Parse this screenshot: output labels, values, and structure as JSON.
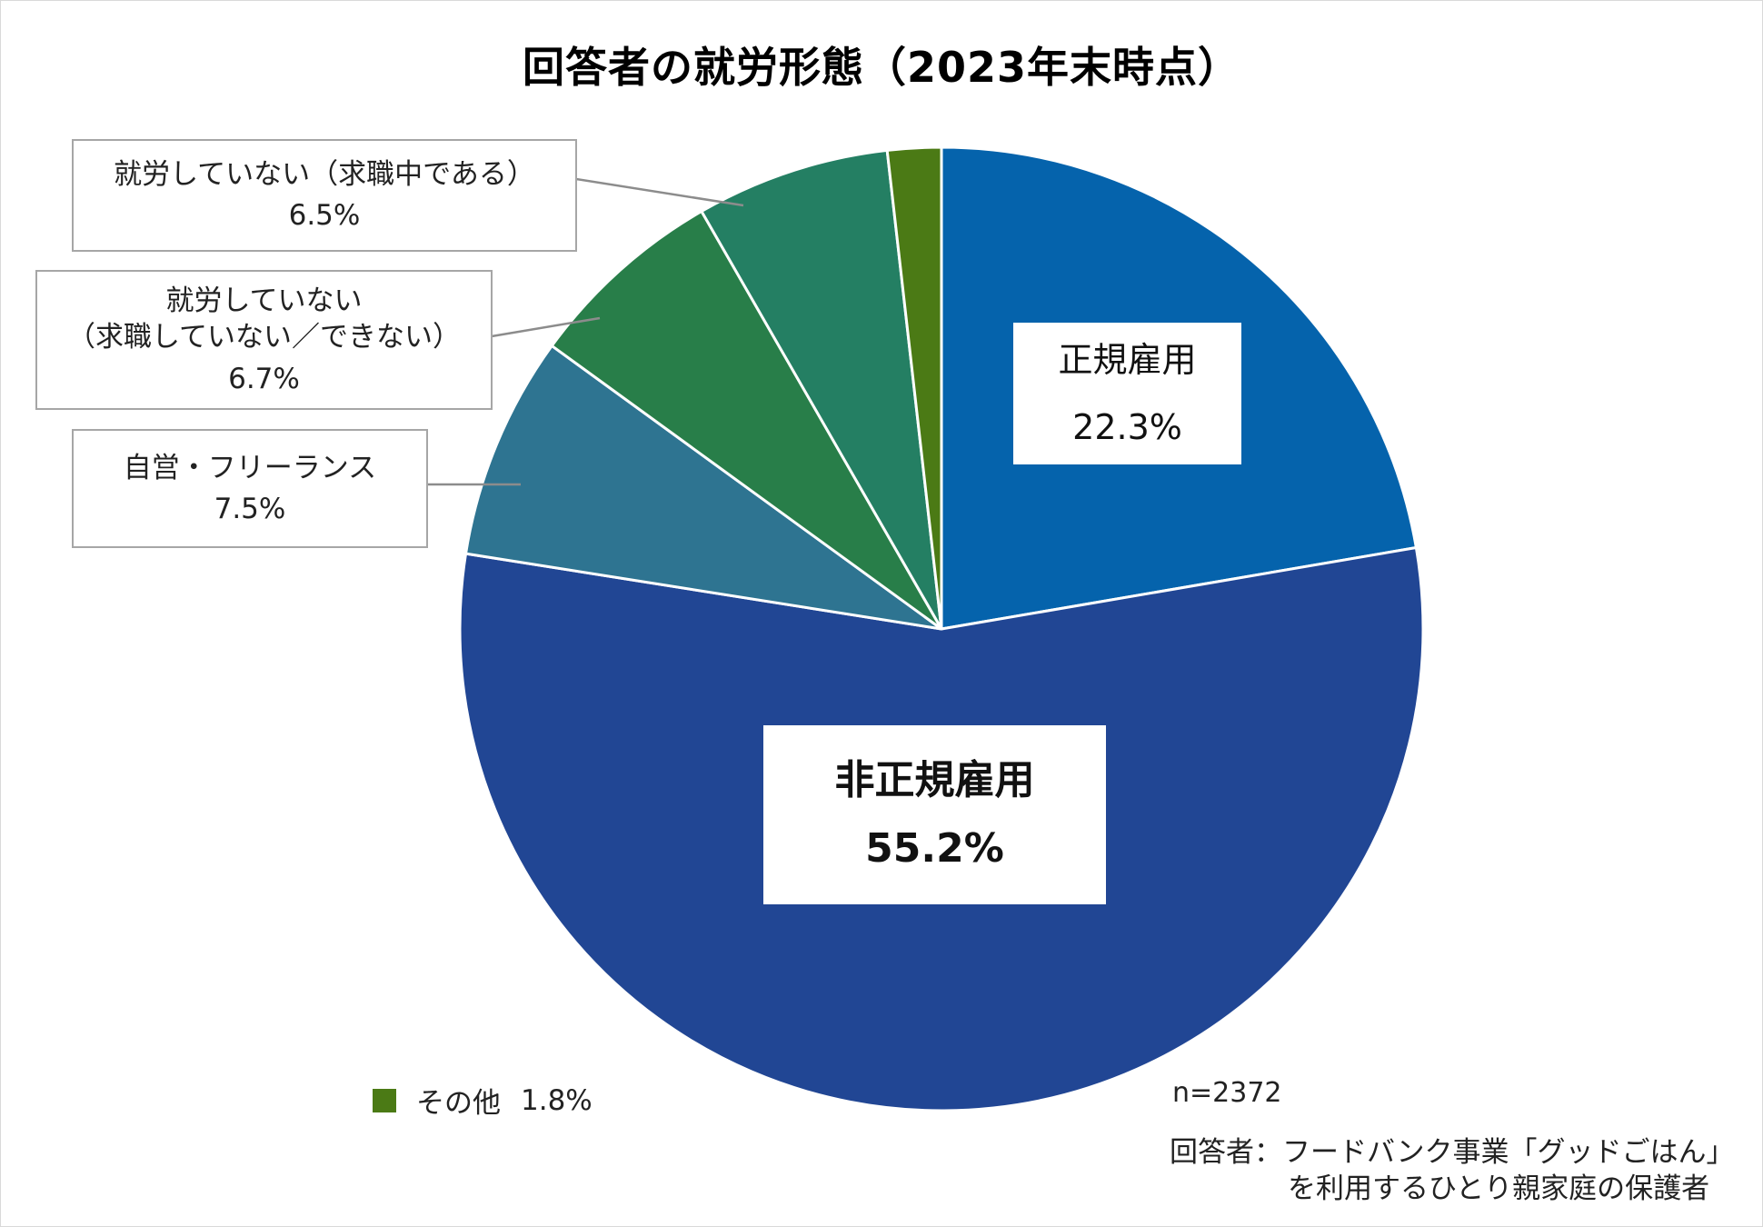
{
  "chart_data": {
    "type": "pie",
    "title": "回答者の就労形態（2023年末時点）",
    "start_angle": "12 o'clock",
    "direction": "clockwise",
    "slices": [
      {
        "label": "正規雇用",
        "value": 22.3,
        "value_text": "22.3%",
        "color": "#0563ac"
      },
      {
        "label": "非正規雇用",
        "value": 55.2,
        "value_text": "55.2%",
        "color": "#214694"
      },
      {
        "label": "自営・フリーランス",
        "value": 7.5,
        "value_text": "7.5%",
        "color": "#2e7491"
      },
      {
        "label": "就労していない（求職していない／できない）",
        "value": 6.7,
        "value_text": "6.7%",
        "color": "#287e49"
      },
      {
        "label": "就労していない（求職中である）",
        "value": 6.5,
        "value_text": "6.5%",
        "color": "#247f63"
      },
      {
        "label": "その他",
        "value": 1.8,
        "value_text": "1.8%",
        "color": "#4b7a15"
      }
    ],
    "annotations": [
      "n=2372",
      "回答者：フードバンク事業「グッドごはん」を利用するひとり親家庭の保護者"
    ],
    "legend_position": "bottom-left (その他 only)"
  },
  "title": "回答者の就労形態（2023年末時点）",
  "labels": {
    "regular": {
      "name": "正規雇用",
      "pct": "22.3%"
    },
    "nonregular": {
      "name": "非正規雇用",
      "pct": "55.2%"
    },
    "self": {
      "name": "自営・フリーランス",
      "pct": "7.5%"
    },
    "not_seeking": {
      "line1": "就労していない",
      "line2": "（求職していない／できない）",
      "pct": "6.7%"
    },
    "seeking": {
      "name": "就労していない（求職中である）",
      "pct": "6.5%"
    }
  },
  "legend": {
    "name": "その他",
    "pct": "1.8%",
    "color": "#4b7a15"
  },
  "n_label": "n=2372",
  "respondent": {
    "line1": "回答者：フードバンク事業「グッドごはん」",
    "line2": "を利用するひとり親家庭の保護者"
  }
}
